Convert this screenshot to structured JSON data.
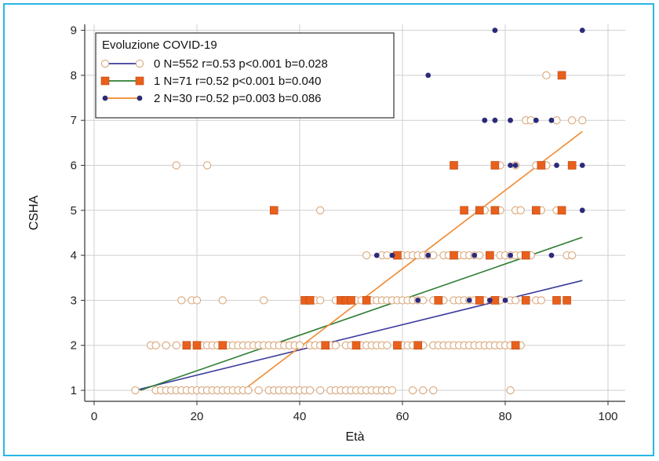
{
  "chart_data": {
    "type": "scatter",
    "title": "",
    "xlabel": "Età",
    "ylabel": "CSHA",
    "xlim": [
      0,
      100
    ],
    "ylim": [
      1,
      9
    ],
    "xticks": [
      "0",
      "20",
      "40",
      "60",
      "80",
      "100"
    ],
    "yticks": [
      "1",
      "2",
      "3",
      "4",
      "5",
      "6",
      "7",
      "8",
      "9"
    ],
    "grid": true,
    "legend": {
      "position": "top-left",
      "title": "Evoluzione COVID-19",
      "entries": [
        {
          "label": "0 N=552 r=0.53 p<0.001 b=0.028",
          "color": "#3b3b9c",
          "marker": "circle-open",
          "marker_color": "#d9a77a"
        },
        {
          "label": "1 N=71 r=0.52 p<0.001 b=0.040",
          "color": "#2e7d32",
          "marker": "square",
          "marker_color": "#e8601c"
        },
        {
          "label": "2 N=30 r=0.52 p=0.003 b=0.086",
          "color": "#f08a30",
          "marker": "dot",
          "marker_color": "#2c2a7a"
        }
      ]
    },
    "series": [
      {
        "name": "0",
        "color": "#d9a77a",
        "line_color": "#3b3b9c",
        "fit": {
          "x": [
            8,
            95
          ],
          "y": [
            1.0,
            3.44
          ]
        },
        "points": [
          [
            8,
            1
          ],
          [
            12,
            1
          ],
          [
            13,
            1
          ],
          [
            14,
            1
          ],
          [
            15,
            1
          ],
          [
            16,
            1
          ],
          [
            17,
            1
          ],
          [
            18,
            1
          ],
          [
            19,
            1
          ],
          [
            20,
            1
          ],
          [
            21,
            1
          ],
          [
            22,
            1
          ],
          [
            23,
            1
          ],
          [
            24,
            1
          ],
          [
            25,
            1
          ],
          [
            26,
            1
          ],
          [
            27,
            1
          ],
          [
            28,
            1
          ],
          [
            29,
            1
          ],
          [
            30,
            1
          ],
          [
            32,
            1
          ],
          [
            34,
            1
          ],
          [
            35,
            1
          ],
          [
            36,
            1
          ],
          [
            37,
            1
          ],
          [
            38,
            1
          ],
          [
            39,
            1
          ],
          [
            40,
            1
          ],
          [
            41,
            1
          ],
          [
            42,
            1
          ],
          [
            44,
            1
          ],
          [
            46,
            1
          ],
          [
            47,
            1
          ],
          [
            48,
            1
          ],
          [
            49,
            1
          ],
          [
            50,
            1
          ],
          [
            51,
            1
          ],
          [
            52,
            1
          ],
          [
            53,
            1
          ],
          [
            54,
            1
          ],
          [
            55,
            1
          ],
          [
            56,
            1
          ],
          [
            57,
            1
          ],
          [
            58,
            1
          ],
          [
            62,
            1
          ],
          [
            64,
            1
          ],
          [
            66,
            1
          ],
          [
            81,
            1
          ],
          [
            11,
            2
          ],
          [
            12,
            2
          ],
          [
            14,
            2
          ],
          [
            16,
            2
          ],
          [
            18,
            2
          ],
          [
            20,
            2
          ],
          [
            21,
            2
          ],
          [
            22,
            2
          ],
          [
            23,
            2
          ],
          [
            24,
            2
          ],
          [
            26,
            2
          ],
          [
            27,
            2
          ],
          [
            28,
            2
          ],
          [
            29,
            2
          ],
          [
            30,
            2
          ],
          [
            31,
            2
          ],
          [
            32,
            2
          ],
          [
            33,
            2
          ],
          [
            34,
            2
          ],
          [
            35,
            2
          ],
          [
            36,
            2
          ],
          [
            37,
            2
          ],
          [
            38,
            2
          ],
          [
            39,
            2
          ],
          [
            40,
            2
          ],
          [
            42,
            2
          ],
          [
            43,
            2
          ],
          [
            44,
            2
          ],
          [
            45,
            2
          ],
          [
            46,
            2
          ],
          [
            47,
            2
          ],
          [
            49,
            2
          ],
          [
            50,
            2
          ],
          [
            51,
            2
          ],
          [
            52,
            2
          ],
          [
            53,
            2
          ],
          [
            54,
            2
          ],
          [
            55,
            2
          ],
          [
            56,
            2
          ],
          [
            57,
            2
          ],
          [
            59,
            2
          ],
          [
            60,
            2
          ],
          [
            61,
            2
          ],
          [
            62,
            2
          ],
          [
            64,
            2
          ],
          [
            66,
            2
          ],
          [
            67,
            2
          ],
          [
            68,
            2
          ],
          [
            69,
            2
          ],
          [
            70,
            2
          ],
          [
            71,
            2
          ],
          [
            72,
            2
          ],
          [
            73,
            2
          ],
          [
            74,
            2
          ],
          [
            75,
            2
          ],
          [
            76,
            2
          ],
          [
            77,
            2
          ],
          [
            78,
            2
          ],
          [
            79,
            2
          ],
          [
            80,
            2
          ],
          [
            81,
            2
          ],
          [
            83,
            2
          ],
          [
            17,
            3
          ],
          [
            19,
            3
          ],
          [
            20,
            3
          ],
          [
            25,
            3
          ],
          [
            33,
            3
          ],
          [
            43,
            3
          ],
          [
            44,
            3
          ],
          [
            47,
            3
          ],
          [
            49,
            3
          ],
          [
            51,
            3
          ],
          [
            52,
            3
          ],
          [
            53,
            3
          ],
          [
            54,
            3
          ],
          [
            55,
            3
          ],
          [
            56,
            3
          ],
          [
            57,
            3
          ],
          [
            58,
            3
          ],
          [
            59,
            3
          ],
          [
            60,
            3
          ],
          [
            61,
            3
          ],
          [
            62,
            3
          ],
          [
            63,
            3
          ],
          [
            64,
            3
          ],
          [
            66,
            3
          ],
          [
            67,
            3
          ],
          [
            68,
            3
          ],
          [
            70,
            3
          ],
          [
            71,
            3
          ],
          [
            72,
            3
          ],
          [
            73,
            3
          ],
          [
            74,
            3
          ],
          [
            76,
            3
          ],
          [
            79,
            3
          ],
          [
            81,
            3
          ],
          [
            82,
            3
          ],
          [
            86,
            3
          ],
          [
            87,
            3
          ],
          [
            53,
            4
          ],
          [
            56,
            4
          ],
          [
            57,
            4
          ],
          [
            60,
            4
          ],
          [
            61,
            4
          ],
          [
            62,
            4
          ],
          [
            63,
            4
          ],
          [
            64,
            4
          ],
          [
            65,
            4
          ],
          [
            66,
            4
          ],
          [
            68,
            4
          ],
          [
            69,
            4
          ],
          [
            71,
            4
          ],
          [
            72,
            4
          ],
          [
            73,
            4
          ],
          [
            74,
            4
          ],
          [
            75,
            4
          ],
          [
            77,
            4
          ],
          [
            79,
            4
          ],
          [
            80,
            4
          ],
          [
            81,
            4
          ],
          [
            82,
            4
          ],
          [
            83,
            4
          ],
          [
            85,
            4
          ],
          [
            92,
            4
          ],
          [
            93,
            4
          ],
          [
            44,
            5
          ],
          [
            76,
            5
          ],
          [
            79,
            5
          ],
          [
            82,
            5
          ],
          [
            83,
            5
          ],
          [
            87,
            5
          ],
          [
            90,
            5
          ],
          [
            91,
            5
          ],
          [
            16,
            6
          ],
          [
            22,
            6
          ],
          [
            79,
            6
          ],
          [
            82,
            6
          ],
          [
            86,
            6
          ],
          [
            88,
            6
          ],
          [
            84,
            7
          ],
          [
            85,
            7
          ],
          [
            90,
            7
          ],
          [
            93,
            7
          ],
          [
            95,
            7
          ],
          [
            88,
            8
          ]
        ]
      },
      {
        "name": "1",
        "color": "#e8601c",
        "line_color": "#2e7d32",
        "fit": {
          "x": [
            9,
            95
          ],
          "y": [
            1.0,
            4.4
          ]
        },
        "points": [
          [
            18,
            2
          ],
          [
            20,
            2
          ],
          [
            25,
            2
          ],
          [
            45,
            2
          ],
          [
            51,
            2
          ],
          [
            59,
            2
          ],
          [
            63,
            2
          ],
          [
            82,
            2
          ],
          [
            41,
            3
          ],
          [
            42,
            3
          ],
          [
            48,
            3
          ],
          [
            49,
            3
          ],
          [
            50,
            3
          ],
          [
            53,
            3
          ],
          [
            67,
            3
          ],
          [
            75,
            3
          ],
          [
            78,
            3
          ],
          [
            84,
            3
          ],
          [
            90,
            3
          ],
          [
            92,
            3
          ],
          [
            59,
            4
          ],
          [
            70,
            4
          ],
          [
            77,
            4
          ],
          [
            84,
            4
          ],
          [
            35,
            5
          ],
          [
            72,
            5
          ],
          [
            75,
            5
          ],
          [
            78,
            5
          ],
          [
            86,
            5
          ],
          [
            91,
            5
          ],
          [
            70,
            6
          ],
          [
            78,
            6
          ],
          [
            87,
            6
          ],
          [
            93,
            6
          ],
          [
            91,
            8
          ]
        ]
      },
      {
        "name": "2",
        "color": "#2c2a7a",
        "line_color": "#f08a30",
        "fit": {
          "x": [
            29,
            95
          ],
          "y": [
            1.0,
            6.75
          ]
        },
        "points": [
          [
            55,
            4
          ],
          [
            58,
            4
          ],
          [
            65,
            4
          ],
          [
            74,
            4
          ],
          [
            81,
            4
          ],
          [
            89,
            4
          ],
          [
            63,
            3
          ],
          [
            73,
            3
          ],
          [
            77,
            3
          ],
          [
            80,
            3
          ],
          [
            95,
            5
          ],
          [
            81,
            6
          ],
          [
            82,
            6
          ],
          [
            90,
            6
          ],
          [
            95,
            6
          ],
          [
            76,
            7
          ],
          [
            78,
            7
          ],
          [
            81,
            7
          ],
          [
            86,
            7
          ],
          [
            89,
            7
          ],
          [
            65,
            8
          ],
          [
            78,
            9
          ],
          [
            95,
            9
          ]
        ]
      }
    ]
  }
}
